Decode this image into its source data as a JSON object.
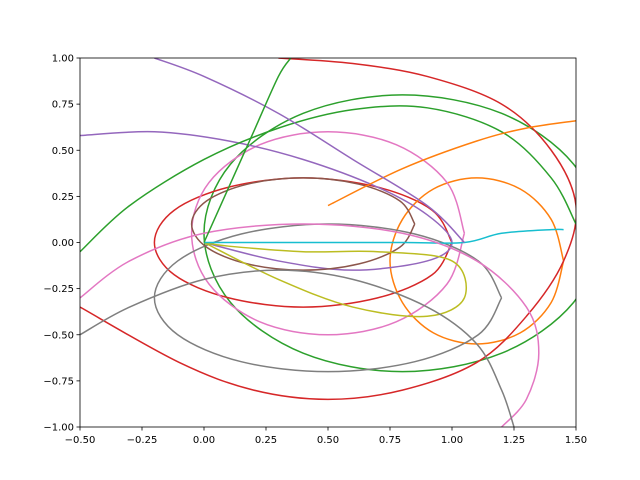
{
  "chart_data": {
    "type": "line",
    "xlim": [
      -0.5,
      1.5
    ],
    "ylim": [
      -1,
      1
    ],
    "xticks": [
      {
        "value": -0.5,
        "label": "−0.50"
      },
      {
        "value": -0.25,
        "label": "−0.25"
      },
      {
        "value": 0,
        "label": "0.00"
      },
      {
        "value": 0.25,
        "label": "0.25"
      },
      {
        "value": 0.5,
        "label": "0.50"
      },
      {
        "value": 0.75,
        "label": "0.75"
      },
      {
        "value": 1,
        "label": "1.00"
      },
      {
        "value": 1.25,
        "label": "1.25"
      },
      {
        "value": 1.5,
        "label": "1.50"
      }
    ],
    "yticks": [
      {
        "value": -1,
        "label": "−1.00"
      },
      {
        "value": -0.75,
        "label": "−0.75"
      },
      {
        "value": -0.5,
        "label": "−0.50"
      },
      {
        "value": -0.25,
        "label": "−0.25"
      },
      {
        "value": 0,
        "label": "0.00"
      },
      {
        "value": 0.25,
        "label": "0.25"
      },
      {
        "value": 0.5,
        "label": "0.50"
      },
      {
        "value": 0.75,
        "label": "0.75"
      },
      {
        "value": 1,
        "label": "1.00"
      }
    ],
    "series": [
      {
        "color": "#2ca02c",
        "x": [
          1.6,
          1.49,
          1.2,
          0.8,
          0.4,
          0.107,
          0,
          0.107,
          0.4,
          0.8,
          1.2,
          1.49,
          1.6
        ],
        "y": [
          0.05,
          0.425,
          0.7,
          0.8,
          0.7,
          0.425,
          0.05,
          -0.325,
          -0.6,
          -0.7,
          -0.6,
          -0.325,
          0.05
        ]
      },
      {
        "color": "#d62728",
        "x": [
          1.0,
          0.92,
          0.7,
          0.4,
          0.1,
          -0.12,
          -0.2,
          -0.12,
          0.1,
          0.4,
          0.7,
          0.92,
          1.0
        ],
        "y": [
          0,
          0.175,
          0.3,
          0.35,
          0.3,
          0.175,
          0,
          -0.175,
          -0.3,
          -0.35,
          -0.3,
          -0.175,
          0
        ]
      },
      {
        "color": "#ff7f0e",
        "x": [
          1.45,
          1.4,
          1.275,
          1.1,
          0.925,
          0.8,
          0.75,
          0.8,
          0.925,
          1.1,
          1.275,
          1.4,
          1.45
        ],
        "y": [
          -0.1,
          0.125,
          0.29,
          0.35,
          0.29,
          0.125,
          -0.1,
          -0.325,
          -0.49,
          -0.55,
          -0.49,
          -0.325,
          -0.1
        ]
      },
      {
        "color": "#e377c2",
        "x": [
          1.05,
          0.98,
          0.775,
          0.5,
          0.225,
          0.02,
          -0.05,
          0.02,
          0.225,
          0.5,
          0.775,
          0.98,
          1.05
        ],
        "y": [
          0.05,
          0.325,
          0.53,
          0.6,
          0.53,
          0.325,
          0.05,
          -0.225,
          -0.43,
          -0.5,
          -0.43,
          -0.225,
          0.05
        ]
      },
      {
        "color": "#7f7f7f",
        "x": [
          1.2,
          1.106,
          0.85,
          0.5,
          0.15,
          -0.106,
          -0.2,
          -0.106,
          0.15,
          0.5,
          0.85,
          1.106,
          1.2
        ],
        "y": [
          -0.3,
          -0.1,
          0.046,
          0.1,
          0.046,
          -0.1,
          -0.3,
          -0.5,
          -0.646,
          -0.7,
          -0.646,
          -0.5,
          -0.3
        ]
      },
      {
        "color": "#9467bd",
        "x": [
          -0.5,
          -0.2,
          0.1,
          0.4,
          0.7,
          0.9,
          1.0,
          0.9,
          0.6,
          0.3,
          0.0
        ],
        "y": [
          0.58,
          0.6,
          0.55,
          0.45,
          0.3,
          0.15,
          0.0,
          -0.1,
          -0.15,
          -0.1,
          0.0
        ]
      },
      {
        "color": "#8c564b",
        "x": [
          0.85,
          0.79,
          0.625,
          0.4,
          0.175,
          0.01,
          -0.05,
          0.01,
          0.175,
          0.4,
          0.625,
          0.79,
          0.85
        ],
        "y": [
          0.1,
          0.225,
          0.316,
          0.35,
          0.316,
          0.225,
          0.1,
          -0.025,
          -0.116,
          -0.15,
          -0.116,
          -0.025,
          0.1
        ]
      },
      {
        "color": "#bcbd22",
        "x": [
          0,
          0.3,
          0.6,
          0.9,
          1.05,
          1.0,
          0.7,
          0.4,
          0.1,
          0
        ],
        "y": [
          0,
          -0.2,
          -0.35,
          -0.4,
          -0.3,
          -0.1,
          -0.05,
          -0.05,
          -0.02,
          0
        ]
      },
      {
        "color": "#17becf",
        "x": [
          0,
          0.4,
          0.8,
          1.05,
          1.2,
          1.4,
          1.45
        ],
        "y": [
          0,
          0,
          0,
          0,
          0.05,
          0.07,
          0.07
        ]
      },
      {
        "color": "#d62728",
        "x": [
          0.3,
          0.6,
          0.9,
          1.2,
          1.4,
          1.5,
          1.45,
          1.3,
          1.1,
          0.8,
          0.5,
          0.2,
          -0.1,
          -0.5
        ],
        "y": [
          1.0,
          0.97,
          0.9,
          0.75,
          0.5,
          0.2,
          -0.1,
          -0.4,
          -0.65,
          -0.8,
          -0.85,
          -0.8,
          -0.65,
          -0.35
        ]
      },
      {
        "color": "#2ca02c",
        "x": [
          -0.5,
          -0.3,
          0,
          0.3,
          0.6,
          0.9,
          1.2,
          1.4,
          1.5
        ],
        "y": [
          -0.05,
          0.2,
          0.45,
          0.62,
          0.72,
          0.73,
          0.6,
          0.35,
          0.1
        ]
      },
      {
        "color": "#e377c2",
        "x": [
          -0.5,
          -0.3,
          0,
          0.4,
          0.8,
          1.1,
          1.3,
          1.35,
          1.3,
          1.2
        ],
        "y": [
          -0.3,
          -0.1,
          0.05,
          0.1,
          0.05,
          -0.1,
          -0.35,
          -0.6,
          -0.85,
          -1.0
        ]
      },
      {
        "color": "#ff7f0e",
        "x": [
          0.5,
          0.8,
          1.1,
          1.3,
          1.5
        ],
        "y": [
          0.2,
          0.4,
          0.55,
          0.62,
          0.66
        ]
      },
      {
        "color": "#7f7f7f",
        "x": [
          -0.5,
          -0.3,
          0,
          0.3,
          0.6,
          0.9,
          1.1,
          1.2,
          1.25
        ],
        "y": [
          -0.5,
          -0.35,
          -0.2,
          -0.15,
          -0.2,
          -0.35,
          -0.55,
          -0.8,
          -1.0
        ]
      },
      {
        "color": "#9467bd",
        "x": [
          -0.2,
          0,
          0.3,
          0.6,
          0.9,
          1.05
        ],
        "y": [
          1.0,
          0.9,
          0.7,
          0.45,
          0.2,
          0.0
        ]
      },
      {
        "color": "#2ca02c",
        "x": [
          0,
          0.1,
          0.2,
          0.3,
          0.35
        ],
        "y": [
          0,
          0.3,
          0.6,
          0.9,
          1.0
        ]
      }
    ]
  }
}
